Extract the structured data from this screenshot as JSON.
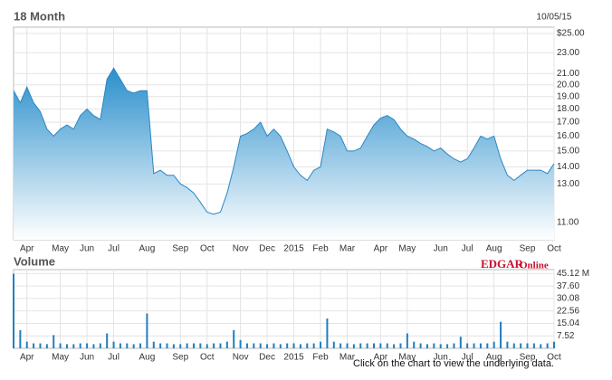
{
  "chart_data": [
    {
      "type": "area",
      "title": "18 Month",
      "subtitle": "10/05/15",
      "color": "#2a87c4",
      "log_scale": true,
      "grid": true,
      "categories": [
        null,
        null,
        "Apr",
        null,
        null,
        null,
        null,
        "May",
        null,
        null,
        null,
        "Jun",
        null,
        null,
        null,
        "Jul",
        null,
        null,
        null,
        null,
        "Aug",
        null,
        null,
        null,
        null,
        "Sep",
        null,
        null,
        null,
        "Oct",
        null,
        null,
        null,
        null,
        "Nov",
        null,
        null,
        null,
        "Dec",
        null,
        null,
        null,
        "2015",
        null,
        null,
        null,
        "Feb",
        null,
        null,
        null,
        "Mar",
        null,
        null,
        null,
        null,
        "Apr",
        null,
        null,
        null,
        "May",
        null,
        null,
        null,
        null,
        "Jun",
        null,
        null,
        null,
        "Jul",
        null,
        null,
        null,
        "Aug",
        null,
        null,
        null,
        null,
        "Sep",
        null,
        null,
        null,
        "Oct"
      ],
      "values": [
        19.5,
        18.5,
        19.8,
        18.5,
        17.8,
        16.5,
        16.0,
        16.5,
        16.8,
        16.5,
        17.5,
        18.0,
        17.5,
        17.2,
        20.5,
        21.5,
        20.5,
        19.5,
        19.3,
        19.5,
        19.5,
        13.6,
        13.8,
        13.5,
        13.5,
        13.0,
        12.8,
        12.5,
        12.0,
        11.5,
        11.4,
        11.5,
        12.5,
        14.0,
        16.0,
        16.2,
        16.5,
        17.0,
        16.0,
        16.5,
        16.0,
        15.0,
        14.0,
        13.5,
        13.2,
        13.8,
        14.0,
        16.5,
        16.3,
        16.0,
        15.0,
        15.0,
        15.2,
        16.0,
        16.8,
        17.3,
        17.5,
        17.2,
        16.5,
        16.0,
        15.8,
        15.5,
        15.3,
        15.0,
        15.2,
        14.8,
        14.5,
        14.3,
        14.5,
        15.2,
        16.0,
        15.8,
        16.0,
        14.5,
        13.5,
        13.2,
        13.5,
        13.8,
        13.8,
        13.8,
        13.6,
        14.2
      ],
      "ylim": [
        10.2,
        25.7
      ],
      "yticks": [
        {
          "value": 25,
          "label": "$25.00"
        },
        {
          "value": 23,
          "label": "23.00"
        },
        {
          "value": 21,
          "label": "21.00"
        },
        {
          "value": 20,
          "label": "20.00"
        },
        {
          "value": 19,
          "label": "19.00"
        },
        {
          "value": 18,
          "label": "18.00"
        },
        {
          "value": 17,
          "label": "17.00"
        },
        {
          "value": 16,
          "label": "16.00"
        },
        {
          "value": 15,
          "label": "15.00"
        },
        {
          "value": 14,
          "label": "14.00"
        },
        {
          "value": 13,
          "label": "13.00"
        },
        {
          "value": 11,
          "label": "11.00"
        }
      ]
    },
    {
      "type": "bar",
      "title": "Volume",
      "color": "#1f7fbf",
      "grid": true,
      "source": [
        "EDGAR",
        "Online"
      ],
      "note": "Click on the chart to view the underlying data.",
      "categories": [
        null,
        null,
        "Apr",
        null,
        null,
        null,
        null,
        "May",
        null,
        null,
        null,
        "Jun",
        null,
        null,
        null,
        "Jul",
        null,
        null,
        null,
        null,
        "Aug",
        null,
        null,
        null,
        null,
        "Sep",
        null,
        null,
        null,
        "Oct",
        null,
        null,
        null,
        null,
        "Nov",
        null,
        null,
        null,
        "Dec",
        null,
        null,
        null,
        "2015",
        null,
        null,
        null,
        "Feb",
        null,
        null,
        null,
        "Mar",
        null,
        null,
        null,
        null,
        "Apr",
        null,
        null,
        null,
        "May",
        null,
        null,
        null,
        null,
        "Jun",
        null,
        null,
        null,
        "Jul",
        null,
        null,
        null,
        "Aug",
        null,
        null,
        null,
        null,
        "Sep",
        null,
        null,
        null,
        "Oct"
      ],
      "values": [
        45,
        11,
        4,
        3,
        3,
        2.5,
        8,
        3,
        2.5,
        2.5,
        3,
        3,
        2.5,
        3,
        9,
        4,
        3,
        3,
        2.5,
        3,
        21,
        4,
        3,
        3,
        2.5,
        2.5,
        3,
        3,
        3,
        2.5,
        3,
        3,
        4,
        11,
        5,
        3,
        3,
        3,
        2.5,
        3,
        2.5,
        3,
        3,
        2.5,
        3,
        3,
        4,
        18,
        4,
        3,
        3,
        2.5,
        3,
        3,
        3,
        3,
        3,
        2.5,
        3,
        9,
        4,
        3,
        2.5,
        3,
        2.5,
        2.5,
        3,
        7,
        3,
        3,
        3,
        3,
        4,
        16,
        4,
        3,
        3,
        3,
        3,
        2.5,
        3,
        4
      ],
      "ylim": [
        0,
        47.5
      ],
      "yticks": [
        {
          "value": 45.12,
          "label": "45.12 M"
        },
        {
          "value": 37.6,
          "label": "37.60"
        },
        30.08,
        22.56,
        15.04,
        7.52
      ]
    }
  ]
}
